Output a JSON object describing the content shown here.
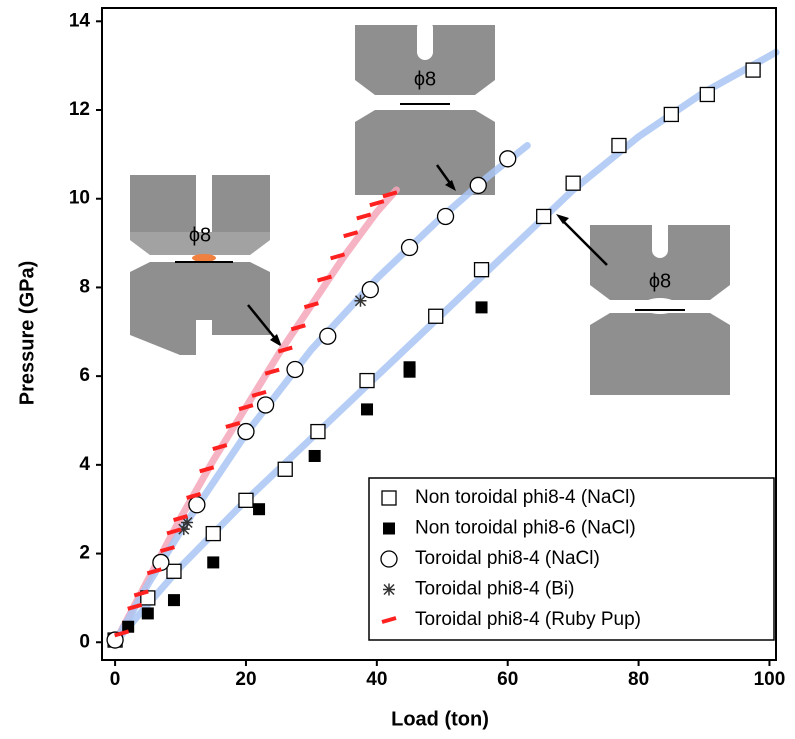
{
  "chart_data": {
    "type": "scatter",
    "x_label": "Load (ton)",
    "y_label": "Pressure (GPa)",
    "xlim": [
      -2,
      101
    ],
    "ylim": [
      -0.4,
      14.3
    ],
    "xticks": [
      0,
      20,
      40,
      60,
      80,
      100
    ],
    "yticks": [
      0,
      2,
      4,
      6,
      8,
      10,
      12,
      14
    ],
    "legend": "lower right",
    "series": [
      {
        "name": "Non toroidal phi8-4 (NaCl)",
        "marker": "open-square",
        "color": "#000000",
        "x": [
          0,
          5,
          9,
          15,
          20,
          26,
          31,
          38.5,
          49,
          56,
          65.5,
          70,
          77,
          85,
          90.5,
          97.5
        ],
        "values": [
          0.05,
          1.0,
          1.6,
          2.45,
          3.2,
          3.9,
          4.75,
          5.9,
          7.35,
          8.4,
          9.6,
          10.35,
          11.2,
          11.9,
          12.35,
          12.9
        ]
      },
      {
        "name": "Non toroidal phi8-6 (NaCl)",
        "marker": "filled-square",
        "color": "#000000",
        "x": [
          2,
          5,
          9,
          15,
          22,
          30.5,
          38.5,
          45,
          45,
          56
        ],
        "values": [
          0.35,
          0.65,
          0.95,
          1.8,
          3.0,
          4.2,
          5.25,
          6.1,
          6.2,
          7.55
        ]
      },
      {
        "name": "Toroidal phi8-4 (NaCl)",
        "marker": "open-circle",
        "color": "#000000",
        "x": [
          0,
          7,
          12.5,
          20,
          23,
          27.5,
          32.5,
          39,
          45,
          50.5,
          55.5,
          60
        ],
        "values": [
          0.05,
          1.8,
          3.1,
          4.75,
          5.35,
          6.15,
          6.9,
          7.95,
          8.9,
          9.6,
          10.3,
          10.9
        ]
      },
      {
        "name": "Toroidal phi8-4 (Bi)",
        "marker": "asterisk",
        "color": "#333333",
        "x": [
          10.5,
          11,
          37.5
        ],
        "values": [
          2.55,
          2.7,
          7.7
        ]
      },
      {
        "name": "Toroidal phi8-4 (Ruby Pup)",
        "marker": "dash",
        "color": "#ff2020",
        "x": [
          1,
          3,
          4,
          6,
          8,
          9,
          10,
          12,
          14,
          16,
          18,
          20,
          22,
          24,
          26,
          28,
          30,
          32,
          34,
          36,
          38,
          40,
          42
        ],
        "values": [
          0.2,
          0.8,
          1.1,
          1.6,
          2.1,
          2.5,
          2.8,
          3.3,
          3.9,
          4.4,
          4.9,
          5.3,
          5.6,
          6.1,
          6.6,
          7.1,
          7.6,
          8.2,
          8.7,
          9.2,
          9.6,
          9.9,
          10.1
        ]
      }
    ],
    "fit_curves": [
      {
        "color": "#f4a6b8",
        "x": [
          0,
          5,
          10,
          15,
          20,
          25,
          30,
          35,
          40,
          43
        ],
        "values": [
          0,
          1.4,
          2.8,
          4.1,
          5.3,
          6.5,
          7.6,
          8.7,
          9.7,
          10.2
        ]
      },
      {
        "color": "#a9c5f5",
        "x": [
          0,
          5,
          10,
          20,
          30,
          40,
          50,
          57,
          63
        ],
        "values": [
          0,
          1.3,
          2.5,
          4.7,
          6.6,
          8.2,
          9.6,
          10.5,
          11.2
        ]
      },
      {
        "color": "#a9c5f5",
        "x": [
          0,
          10,
          20,
          30,
          40,
          50,
          60,
          70,
          80,
          90,
          101
        ],
        "values": [
          0,
          1.7,
          3.2,
          4.6,
          6.0,
          7.4,
          8.8,
          10.2,
          11.4,
          12.4,
          13.3
        ]
      }
    ],
    "inset_labels": [
      "ϕ8",
      "ϕ8",
      "ϕ8"
    ]
  }
}
